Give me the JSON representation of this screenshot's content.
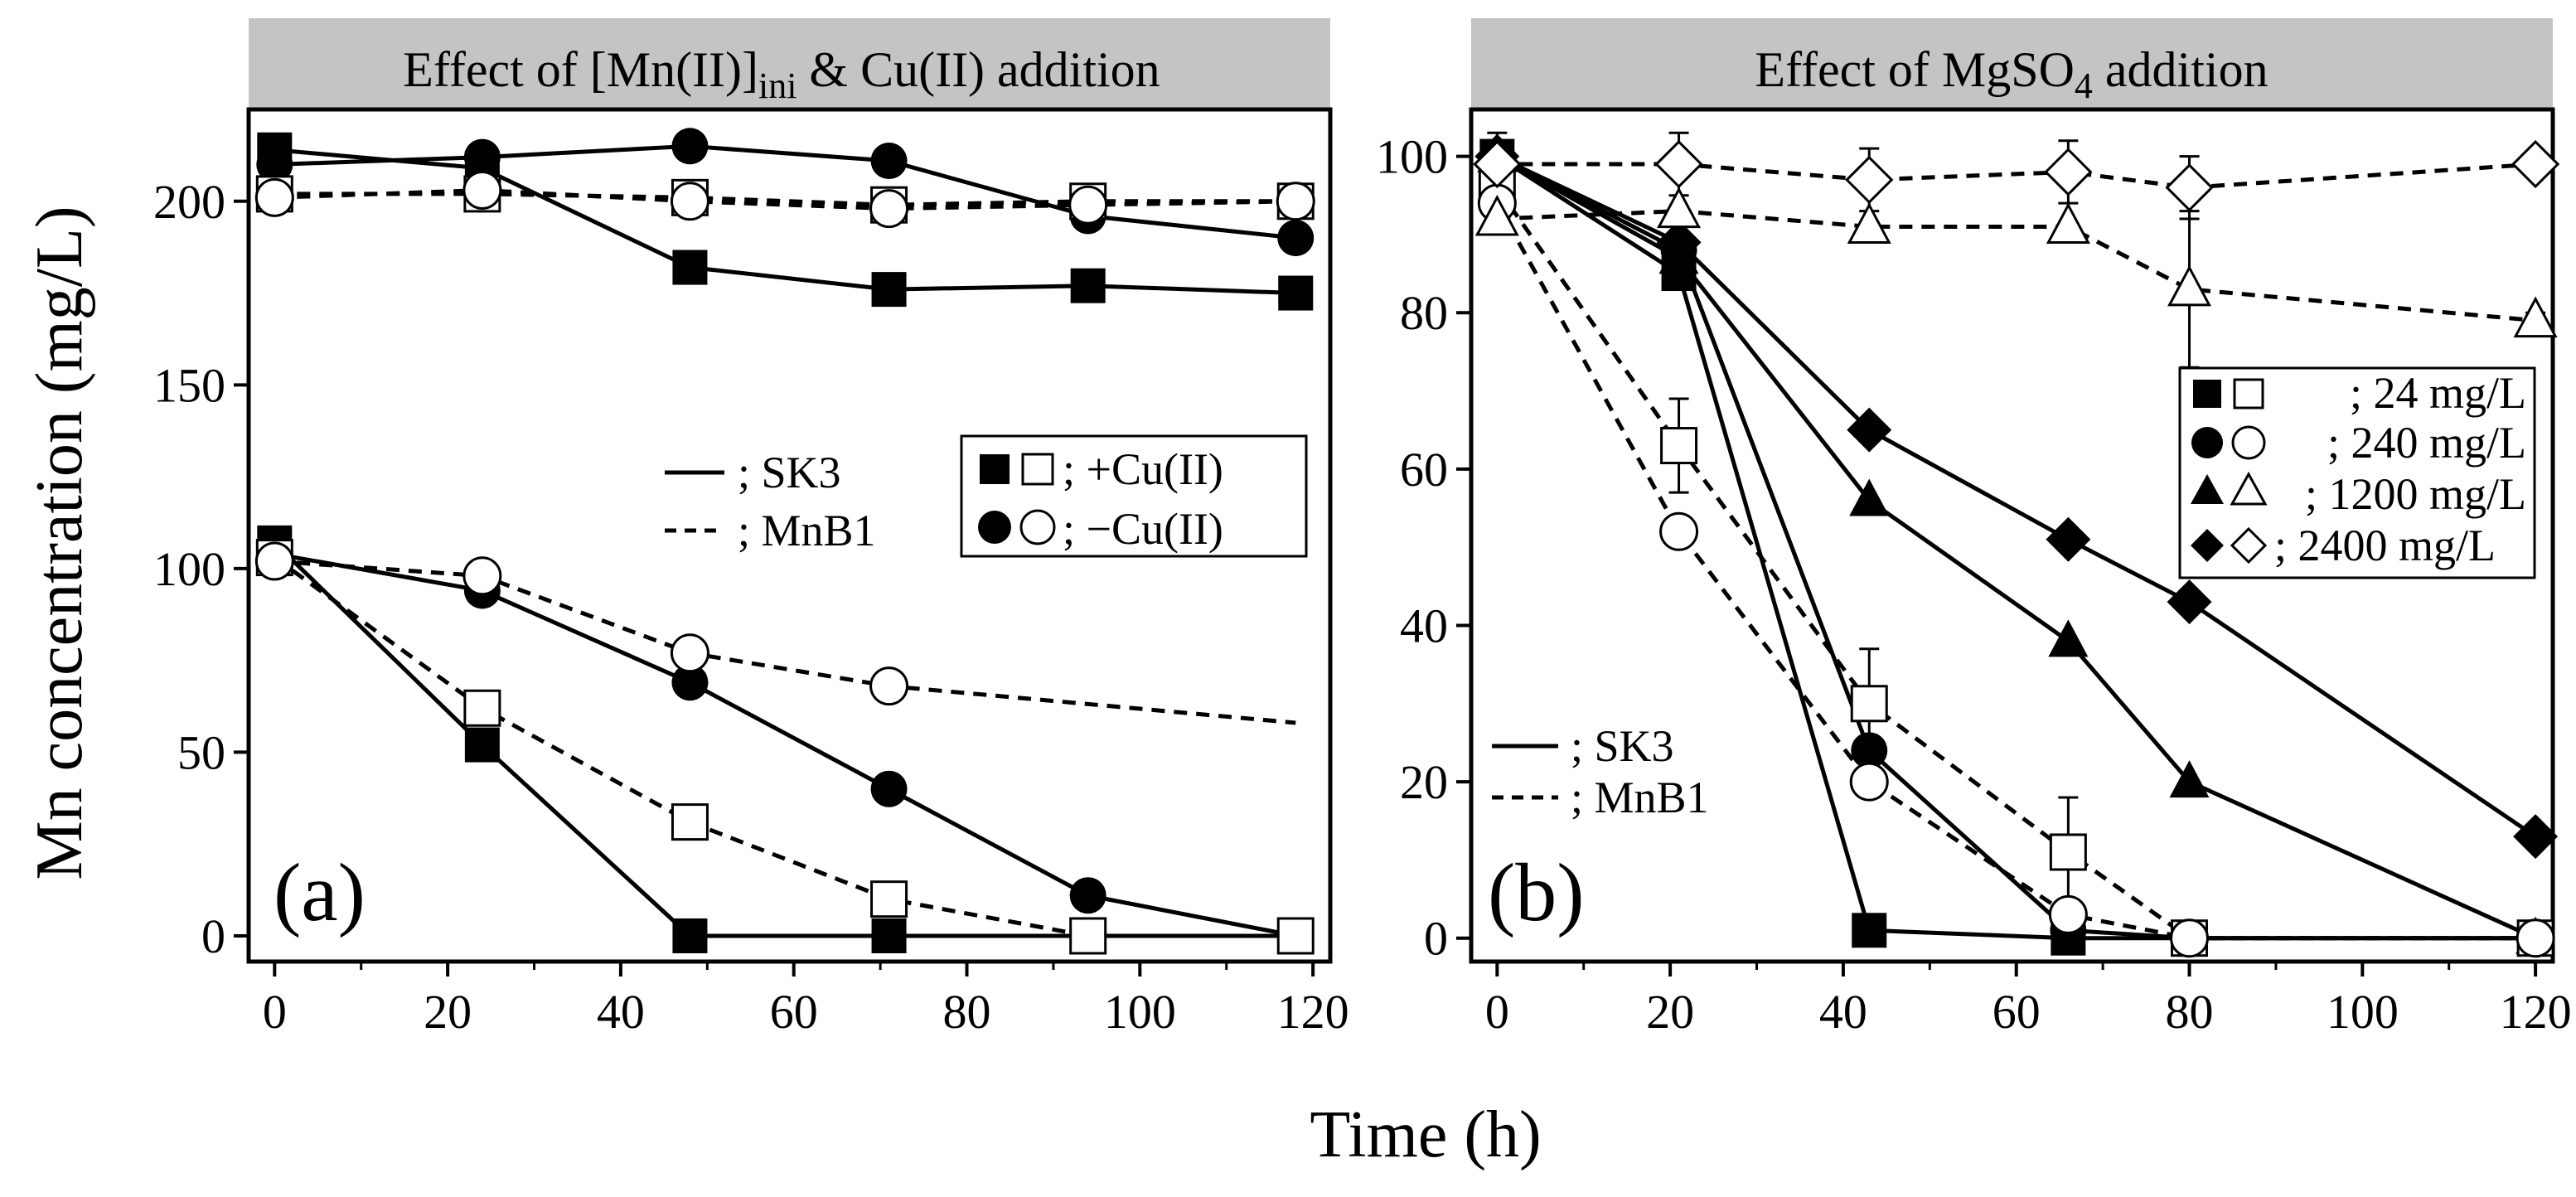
{
  "figure": {
    "ylabel": "Mn concentration (mg/L)",
    "xlabel": "Time (h)"
  },
  "chart_data": [
    {
      "type": "line",
      "panel": "(a)",
      "title": "Effect of [Mn(II)]ini & Cu(II) addition",
      "title_main": "Effect of [Mn(II)]",
      "title_sub": "ini",
      "title_tail": " & Cu(II) addition",
      "xlabel": "Time (h)",
      "ylabel": "Mn concentration (mg/L)",
      "xlim": [
        -3,
        122
      ],
      "ylim": [
        -7,
        225
      ],
      "xticks": [
        0,
        20,
        40,
        60,
        80,
        100,
        120
      ],
      "yticks": [
        0,
        50,
        100,
        150,
        200
      ],
      "legend": {
        "lines": [
          {
            "dash": "solid",
            "label": "; SK3"
          },
          {
            "dash": "dashed",
            "label": "; MnB1"
          }
        ],
        "markers": [
          {
            "shape": "square",
            "label": "; +Cu(II)"
          },
          {
            "shape": "circle",
            "label": "; −Cu(II)"
          }
        ]
      },
      "series": [
        {
          "name": "SK3 +Cu(II) high",
          "marker": "square",
          "fill": "filled",
          "dash": "solid",
          "x": [
            0,
            24,
            48,
            71,
            94,
            118
          ],
          "y": [
            214,
            209,
            182,
            176,
            177,
            175
          ]
        },
        {
          "name": "SK3 −Cu(II) high",
          "marker": "circle",
          "fill": "filled",
          "dash": "solid",
          "x": [
            0,
            24,
            48,
            71,
            94,
            118
          ],
          "y": [
            210,
            212,
            215,
            211,
            196,
            190
          ]
        },
        {
          "name": "MnB1 +Cu(II) high",
          "marker": "square",
          "fill": "open",
          "dash": "dashed",
          "x": [
            0,
            24,
            48,
            71,
            94,
            118
          ],
          "y": [
            202,
            202,
            201,
            199,
            200,
            200
          ]
        },
        {
          "name": "MnB1 −Cu(II) high",
          "marker": "circle",
          "fill": "open",
          "dash": "dashed",
          "x": [
            0,
            24,
            48,
            71,
            94,
            118
          ],
          "y": [
            201,
            203,
            200,
            198,
            199,
            200
          ]
        },
        {
          "name": "SK3 +Cu(II) low",
          "marker": "square",
          "fill": "filled",
          "dash": "solid",
          "x": [
            0,
            24,
            48,
            71,
            94,
            118
          ],
          "y": [
            107,
            52,
            0,
            0,
            0,
            0
          ]
        },
        {
          "name": "SK3 −Cu(II) low",
          "marker": "circle",
          "fill": "filled",
          "dash": "solid",
          "x": [
            0,
            24,
            48,
            71,
            94,
            118
          ],
          "y": [
            104,
            94,
            69,
            40,
            11,
            0
          ]
        },
        {
          "name": "MnB1 +Cu(II) low",
          "marker": "square",
          "fill": "open",
          "dash": "dashed",
          "x": [
            0,
            24,
            48,
            71,
            94,
            118
          ],
          "y": [
            103,
            62,
            31,
            10,
            0,
            0
          ]
        },
        {
          "name": "MnB1 −Cu(II) low",
          "marker": "circle",
          "fill": "open",
          "dash": "dashed",
          "x": [
            0,
            24,
            48,
            71,
            94,
            118
          ],
          "y": [
            102,
            98,
            77,
            68,
            null,
            null
          ],
          "line_x": [
            0,
            24,
            48,
            71,
            118
          ],
          "line_y": [
            102,
            98,
            77,
            68,
            58
          ]
        }
      ]
    },
    {
      "type": "line",
      "panel": "(b)",
      "title": "Effect of MgSO4 addition",
      "title_main": "Effect of MgSO",
      "title_sub": "4",
      "title_tail": " addition",
      "xlabel": "Time (h)",
      "ylabel": "Mn concentration (mg/L)",
      "xlim": [
        -3,
        122
      ],
      "ylim": [
        -3,
        106
      ],
      "xticks": [
        0,
        20,
        40,
        60,
        80,
        100,
        120
      ],
      "yticks": [
        0,
        20,
        40,
        60,
        80,
        100
      ],
      "legend": {
        "lines": [
          {
            "dash": "solid",
            "label": "; SK3"
          },
          {
            "dash": "dashed",
            "label": "; MnB1"
          }
        ],
        "markers": [
          {
            "shape": "square",
            "label": "; 24 mg/L"
          },
          {
            "shape": "circle",
            "label": "; 240 mg/L"
          },
          {
            "shape": "triangle",
            "label": "; 1200 mg/L"
          },
          {
            "shape": "diamond",
            "label": "; 2400 mg/L"
          }
        ]
      },
      "series": [
        {
          "name": "SK3 24 mg/L",
          "marker": "square",
          "fill": "filled",
          "dash": "solid",
          "x": [
            0,
            21,
            43,
            66,
            80,
            120
          ],
          "y": [
            100,
            85,
            1,
            0,
            0,
            0
          ]
        },
        {
          "name": "SK3 240 mg/L",
          "marker": "circle",
          "fill": "filled",
          "dash": "solid",
          "x": [
            0,
            21,
            43,
            66,
            80,
            120
          ],
          "y": [
            100,
            88,
            24,
            1,
            0,
            0
          ]
        },
        {
          "name": "SK3 1200 mg/L",
          "marker": "triangle",
          "fill": "filled",
          "dash": "solid",
          "x": [
            0,
            21,
            43,
            66,
            80,
            120
          ],
          "y": [
            100,
            87,
            56,
            38,
            20,
            0
          ]
        },
        {
          "name": "SK3 2400 mg/L",
          "marker": "diamond",
          "fill": "filled",
          "dash": "solid",
          "x": [
            0,
            21,
            43,
            66,
            80,
            120
          ],
          "y": [
            100,
            89,
            65,
            51,
            43,
            13
          ]
        },
        {
          "name": "MnB1 24 mg/L",
          "marker": "square",
          "fill": "open",
          "dash": "dashed",
          "x": [
            0,
            21,
            43,
            66,
            80,
            120
          ],
          "y": [
            96,
            63,
            30,
            11,
            0,
            0
          ],
          "err": [
            3,
            6,
            7,
            7,
            0,
            0
          ]
        },
        {
          "name": "MnB1 240 mg/L",
          "marker": "circle",
          "fill": "open",
          "dash": "dashed",
          "x": [
            0,
            21,
            43,
            66,
            80,
            120
          ],
          "y": [
            94,
            52,
            20,
            3,
            0,
            0
          ]
        },
        {
          "name": "MnB1 1200 mg/L",
          "marker": "triangle",
          "fill": "open",
          "dash": "dashed",
          "x": [
            0,
            21,
            43,
            66,
            80,
            120
          ],
          "y": [
            92,
            93,
            91,
            91,
            83,
            79
          ],
          "err": [
            2,
            0,
            0,
            0,
            10,
            1
          ]
        },
        {
          "name": "MnB1 2400 mg/L",
          "marker": "diamond",
          "fill": "open",
          "dash": "dashed",
          "x": [
            0,
            21,
            43,
            66,
            80,
            120
          ],
          "y": [
            99,
            99,
            97,
            98,
            96,
            99
          ],
          "err": [
            4,
            4,
            4,
            4,
            4,
            1
          ]
        }
      ]
    }
  ]
}
